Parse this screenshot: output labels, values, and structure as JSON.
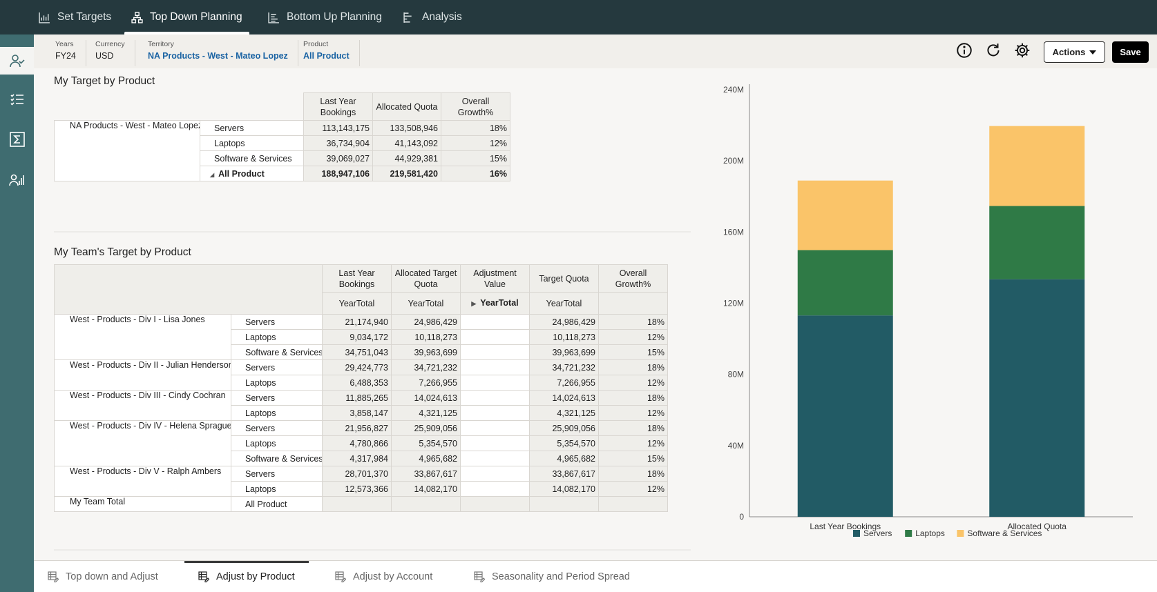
{
  "nav": {
    "tabs": [
      {
        "label": "Set Targets"
      },
      {
        "label": "Top Down Planning"
      },
      {
        "label": "Bottom Up Planning"
      },
      {
        "label": "Analysis"
      }
    ]
  },
  "pov": {
    "years": {
      "label": "Years",
      "value": "FY24"
    },
    "currency": {
      "label": "Currency",
      "value": "USD"
    },
    "territory": {
      "label": "Territory",
      "value": "NA Products - West - Mateo Lopez"
    },
    "product": {
      "label": "Product",
      "value": "All Product"
    }
  },
  "toolbar": {
    "actions_label": "Actions",
    "save_label": "Save"
  },
  "my_target": {
    "title": "My Target by Product",
    "headers": [
      "Last Year Bookings",
      "Allocated Quota",
      "Overall Growth%"
    ],
    "territory": "NA Products - West - Mateo Lopez",
    "rows": [
      {
        "product": "Servers",
        "lyb": "113,143,175",
        "quota": "133,508,946",
        "growth": "18%"
      },
      {
        "product": "Laptops",
        "lyb": "36,734,904",
        "quota": "41,143,092",
        "growth": "12%"
      },
      {
        "product": "Software & Services",
        "lyb": "39,069,027",
        "quota": "44,929,381",
        "growth": "15%"
      }
    ],
    "total": {
      "product": "All Product",
      "lyb": "188,947,106",
      "quota": "219,581,420",
      "growth": "16%"
    }
  },
  "team_target": {
    "title": "My Team's Target by Product",
    "headers": [
      "Last Year Bookings",
      "Allocated Target Quota",
      "Adjustment Value",
      "Target Quota",
      "Overall Growth%"
    ],
    "subheaders": [
      "YearTotal",
      "YearTotal",
      "YearTotal",
      "YearTotal"
    ],
    "groups": [
      {
        "name": "West - Products - Div I - Lisa Jones",
        "rows": [
          {
            "product": "Servers",
            "lyb": "21,174,940",
            "alloc": "24,986,429",
            "adj": "",
            "target": "24,986,429",
            "growth": "18%"
          },
          {
            "product": "Laptops",
            "lyb": "9,034,172",
            "alloc": "10,118,273",
            "adj": "",
            "target": "10,118,273",
            "growth": "12%"
          },
          {
            "product": "Software & Services",
            "lyb": "34,751,043",
            "alloc": "39,963,699",
            "adj": "",
            "target": "39,963,699",
            "growth": "15%"
          }
        ]
      },
      {
        "name": "West - Products - Div II - Julian Henderson",
        "rows": [
          {
            "product": "Servers",
            "lyb": "29,424,773",
            "alloc": "34,721,232",
            "adj": "",
            "target": "34,721,232",
            "growth": "18%"
          },
          {
            "product": "Laptops",
            "lyb": "6,488,353",
            "alloc": "7,266,955",
            "adj": "",
            "target": "7,266,955",
            "growth": "12%"
          }
        ]
      },
      {
        "name": "West - Products - Div III - Cindy Cochran",
        "rows": [
          {
            "product": "Servers",
            "lyb": "11,885,265",
            "alloc": "14,024,613",
            "adj": "",
            "target": "14,024,613",
            "growth": "18%"
          },
          {
            "product": "Laptops",
            "lyb": "3,858,147",
            "alloc": "4,321,125",
            "adj": "",
            "target": "4,321,125",
            "growth": "12%"
          }
        ]
      },
      {
        "name": "West - Products - Div IV - Helena Sprague",
        "rows": [
          {
            "product": "Servers",
            "lyb": "21,956,827",
            "alloc": "25,909,056",
            "adj": "",
            "target": "25,909,056",
            "growth": "18%"
          },
          {
            "product": "Laptops",
            "lyb": "4,780,866",
            "alloc": "5,354,570",
            "adj": "",
            "target": "5,354,570",
            "growth": "12%"
          },
          {
            "product": "Software & Services",
            "lyb": "4,317,984",
            "alloc": "4,965,682",
            "adj": "",
            "target": "4,965,682",
            "growth": "15%"
          }
        ]
      },
      {
        "name": "West - Products - Div V - Ralph Ambers",
        "rows": [
          {
            "product": "Servers",
            "lyb": "28,701,370",
            "alloc": "33,867,617",
            "adj": "",
            "target": "33,867,617",
            "growth": "18%"
          },
          {
            "product": "Laptops",
            "lyb": "12,573,366",
            "alloc": "14,082,170",
            "adj": "",
            "target": "14,082,170",
            "growth": "12%"
          }
        ]
      }
    ],
    "total": {
      "name": "My Team Total",
      "product": "All Product"
    }
  },
  "chart_data": {
    "type": "bar",
    "stacked": true,
    "categories": [
      "Last Year Bookings",
      "Allocated Quota"
    ],
    "series": [
      {
        "name": "Servers",
        "values": [
          113143175,
          133508946
        ],
        "color": "#225b65"
      },
      {
        "name": "Laptops",
        "values": [
          36734904,
          41143092
        ],
        "color": "#2f7a46"
      },
      {
        "name": "Software & Services",
        "values": [
          39069027,
          44929381
        ],
        "color": "#fac469"
      }
    ],
    "ylim": [
      0,
      240000000
    ],
    "yticks": [
      0,
      40000000,
      80000000,
      120000000,
      160000000,
      200000000,
      240000000
    ],
    "ytick_labels": [
      "0",
      "40M",
      "80M",
      "120M",
      "160M",
      "200M",
      "240M"
    ],
    "legend_position": "bottom"
  },
  "bottom_tabs": [
    {
      "label": "Top down and Adjust"
    },
    {
      "label": "Adjust by Product"
    },
    {
      "label": "Adjust by Account"
    },
    {
      "label": "Seasonality and Period Spread"
    }
  ]
}
